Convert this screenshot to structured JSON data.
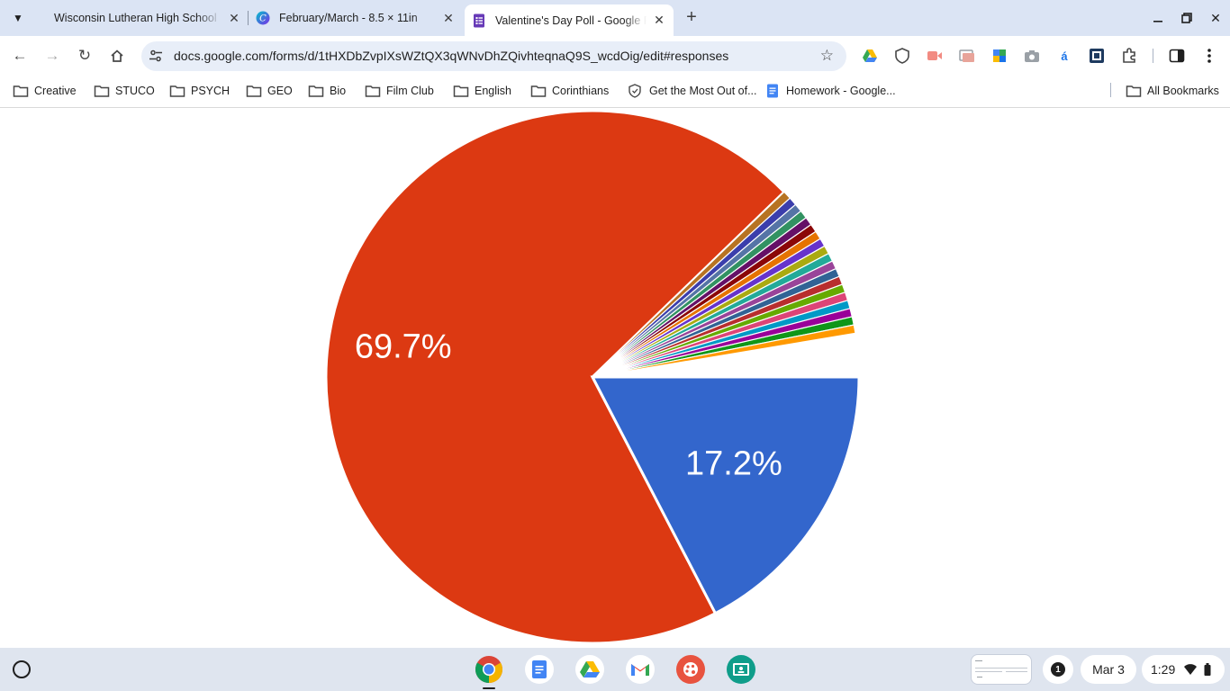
{
  "browser": {
    "tabs": [
      {
        "title": "Wisconsin Lutheran High School",
        "active": false
      },
      {
        "title": "February/March - 8.5 × 11in",
        "active": false
      },
      {
        "title": "Valentine's Day Poll - Google Forms",
        "active": true
      }
    ],
    "url": "docs.google.com/forms/d/1tHXDbZvpIXsWZtQX3qWNvDhZQivhteqnaQ9S_wcdOig/edit#responses",
    "bookmarks": [
      {
        "label": "Creative",
        "icon": "folder-icon"
      },
      {
        "label": "STUCO",
        "icon": "folder-icon"
      },
      {
        "label": "PSYCH",
        "icon": "folder-icon"
      },
      {
        "label": "GEO",
        "icon": "folder-icon"
      },
      {
        "label": "Bio",
        "icon": "folder-icon"
      },
      {
        "label": "Film Club",
        "icon": "folder-icon"
      },
      {
        "label": "English",
        "icon": "folder-icon"
      },
      {
        "label": "Corinthians",
        "icon": "folder-icon"
      },
      {
        "label": "Get the Most Out of...",
        "icon": "shield-favicon-icon"
      },
      {
        "label": "Homework - Google...",
        "icon": "docs-favicon-icon"
      }
    ],
    "all_bookmarks_label": "All Bookmarks",
    "extensions": [
      "drive-icon",
      "shield-icon",
      "screencast-icon",
      "gallery-icon",
      "cube-icon",
      "camera-icon",
      "accent-a-icon",
      "reader-icon",
      "puzzle-icon"
    ]
  },
  "chart_data": {
    "type": "pie",
    "slices": [
      {
        "value": 69.7,
        "color": "#dc3912",
        "label": "69.7%"
      },
      {
        "value": 17.2,
        "color": "#3366cc",
        "label": "17.2%"
      },
      {
        "value": 0.5,
        "color": "#b77322"
      },
      {
        "value": 0.5,
        "color": "#3b3eac"
      },
      {
        "value": 0.5,
        "color": "#5574a6"
      },
      {
        "value": 0.5,
        "color": "#329262"
      },
      {
        "value": 0.5,
        "color": "#651067"
      },
      {
        "value": 0.5,
        "color": "#8b0707"
      },
      {
        "value": 0.5,
        "color": "#e67300"
      },
      {
        "value": 0.5,
        "color": "#6633cc"
      },
      {
        "value": 0.5,
        "color": "#aaaa11"
      },
      {
        "value": 0.5,
        "color": "#22aa99"
      },
      {
        "value": 0.5,
        "color": "#994499"
      },
      {
        "value": 0.5,
        "color": "#316395"
      },
      {
        "value": 0.5,
        "color": "#b82e2e"
      },
      {
        "value": 0.5,
        "color": "#66aa00"
      },
      {
        "value": 0.5,
        "color": "#dd4477"
      },
      {
        "value": 0.5,
        "color": "#0099c6"
      },
      {
        "value": 0.5,
        "color": "#990099"
      },
      {
        "value": 0.5,
        "color": "#109618"
      },
      {
        "value": 0.5,
        "color": "#ff9900"
      }
    ],
    "unlabeled_remainder_percent": 2.6,
    "label_color": "#ffffff"
  },
  "shelf": {
    "apps": [
      "chrome-icon",
      "docs-icon",
      "drive-icon",
      "gmail-icon",
      "canvas-icon",
      "classroom-icon"
    ],
    "notification_count": "1",
    "date": "Mar 3",
    "time": "1:29"
  }
}
